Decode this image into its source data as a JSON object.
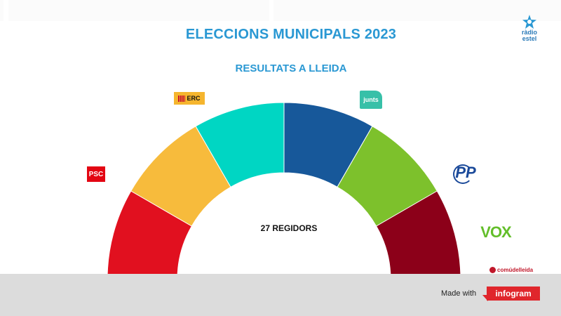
{
  "header": {
    "title": "ELECCIONS MUNICIPALS 2023",
    "subtitle": "RESULTATS A LLEIDA",
    "brand_line1": "ràdio",
    "brand_line2": "estel",
    "brand_icon": "star-icon"
  },
  "chart_data": {
    "type": "pie",
    "subtype": "semicircle",
    "center_label": "27 REGIDORS",
    "total_seats": 27,
    "series": [
      {
        "party": "PSC",
        "color": "#e1101f"
      },
      {
        "party": "ERC",
        "color": "#f7bb3c"
      },
      {
        "party": "Junts",
        "color": "#00d6c3"
      },
      {
        "party": "PP",
        "color": "#17589a"
      },
      {
        "party": "Vox",
        "color": "#7dc12c"
      },
      {
        "party": "Comú de Lleida",
        "color": "#8c0019"
      }
    ]
  },
  "logos": {
    "erc": "ERC",
    "junts": "junts",
    "psc": "PSC",
    "pp": "PP",
    "vox": "VOX",
    "comu": "comúdelleida"
  },
  "footer": {
    "made_with": "Made with",
    "badge": "infogram"
  }
}
